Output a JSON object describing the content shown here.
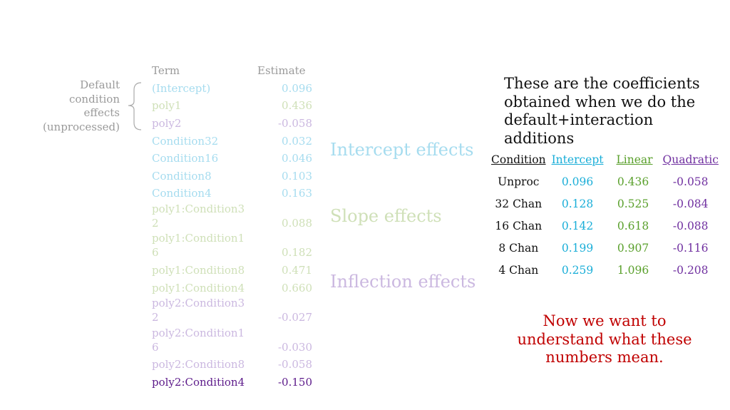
{
  "colors": {
    "intercept_light": "#a6dcef",
    "slope_light": "#cfe0b8",
    "inflection_light": "#cbb8e0",
    "inflection_strong": "#5c1a8a",
    "header_gray": "#9a9a9a",
    "cyan": "#1aaed8",
    "green": "#5aa02c",
    "purple": "#7030a0",
    "red": "#c00000"
  },
  "left_table": {
    "col_term": "Term",
    "col_estimate": "Estimate",
    "rows": [
      {
        "term": "(Intercept)",
        "estimate": "0.096"
      },
      {
        "term": "poly1",
        "estimate": "0.436"
      },
      {
        "term": "poly2",
        "estimate": "-0.058"
      },
      {
        "term": "Condition32",
        "estimate": "0.032"
      },
      {
        "term": "Condition16",
        "estimate": "0.046"
      },
      {
        "term": "Condition8",
        "estimate": "0.103"
      },
      {
        "term": "Condition4",
        "estimate": "0.163"
      },
      {
        "term_line1": "poly1:Condition3",
        "term_line2": "2",
        "estimate": "0.088"
      },
      {
        "term_line1": "poly1:Condition1",
        "term_line2": "6",
        "estimate": "0.182"
      },
      {
        "term": "poly1:Condition8",
        "estimate": "0.471"
      },
      {
        "term": "poly1:Condition4",
        "estimate": "0.660"
      },
      {
        "term_line1": "poly2:Condition3",
        "term_line2": "2",
        "estimate": "-0.027"
      },
      {
        "term_line1": "poly2:Condition1",
        "term_line2": "6",
        "estimate": "-0.030"
      },
      {
        "term": "poly2:Condition8",
        "estimate": "-0.058"
      },
      {
        "term": "poly2:Condition4",
        "estimate": "-0.150"
      }
    ]
  },
  "bracket_label": [
    "Default",
    "condition",
    "effects",
    "(unprocessed)"
  ],
  "group_labels": {
    "intercept": "Intercept effects",
    "slope": "Slope effects",
    "inflection": "Inflection effects"
  },
  "right_heading": "These are the coefficients obtained when we do the default+interaction additions",
  "coef_table": {
    "headers": [
      "Condition",
      "Intercept",
      "Linear",
      "Quadratic"
    ],
    "rows": [
      [
        "Unproc",
        "0.096",
        "0.436",
        "-0.058"
      ],
      [
        "32 Chan",
        "0.128",
        "0.525",
        "-0.084"
      ],
      [
        "16 Chan",
        "0.142",
        "0.618",
        "-0.088"
      ],
      [
        "8 Chan",
        "0.199",
        "0.907",
        "-0.116"
      ],
      [
        "4 Chan",
        "0.259",
        "1.096",
        "-0.208"
      ]
    ]
  },
  "note": "Now we want to understand what these numbers mean."
}
